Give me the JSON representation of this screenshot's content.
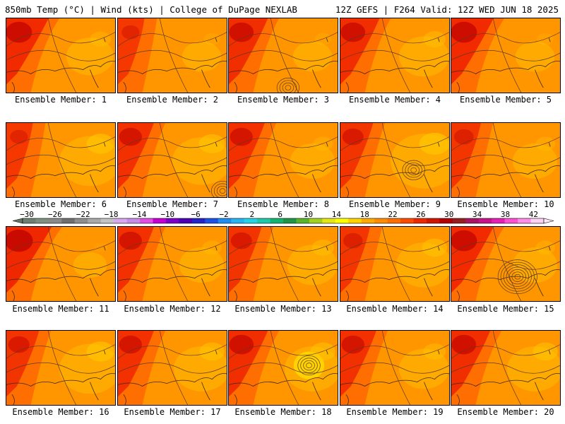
{
  "header": {
    "left": "850mb Temp (°C) | Wind (kts) | College of DuPage NEXLAB",
    "right": "12Z GEFS | F264 Valid: 12Z WED JUN 18 2025"
  },
  "members": [
    {
      "label": "Ensemble Member: 1",
      "cool": 0.35,
      "hot_nw": 0.9,
      "low": null
    },
    {
      "label": "Ensemble Member: 2",
      "cool": 0.2,
      "hot_nw": 0.4,
      "low": null
    },
    {
      "label": "Ensemble Member: 3",
      "cool": 0.2,
      "hot_nw": 0.8,
      "low": "s"
    },
    {
      "label": "Ensemble Member: 4",
      "cool": 0.4,
      "hot_nw": 0.8,
      "low": null
    },
    {
      "label": "Ensemble Member: 5",
      "cool": 0.2,
      "hot_nw": 0.9,
      "low": null
    },
    {
      "label": "Ensemble Member: 6",
      "cool": 0.6,
      "hot_nw": 0.4,
      "low": null
    },
    {
      "label": "Ensemble Member: 7",
      "cool": 0.55,
      "hot_nw": 0.7,
      "low": "se"
    },
    {
      "label": "Ensemble Member: 8",
      "cool": 0.3,
      "hot_nw": 0.7,
      "low": null
    },
    {
      "label": "Ensemble Member: 9",
      "cool": 0.7,
      "hot_nw": 0.6,
      "low": "c"
    },
    {
      "label": "Ensemble Member: 10",
      "cool": 0.3,
      "hot_nw": 0.5,
      "low": null
    },
    {
      "label": "Ensemble Member: 11",
      "cool": 0.1,
      "hot_nw": 1.0,
      "low": null
    },
    {
      "label": "Ensemble Member: 12",
      "cool": 0.3,
      "hot_nw": 0.7,
      "low": null
    },
    {
      "label": "Ensemble Member: 13",
      "cool": 0.4,
      "hot_nw": 0.6,
      "low": null
    },
    {
      "label": "Ensemble Member: 14",
      "cool": 0.5,
      "hot_nw": 0.5,
      "low": null
    },
    {
      "label": "Ensemble Member: 15",
      "cool": 0.3,
      "hot_nw": 0.9,
      "low": "big"
    },
    {
      "label": "Ensemble Member: 16",
      "cool": 0.6,
      "hot_nw": 0.6,
      "low": null
    },
    {
      "label": "Ensemble Member: 17",
      "cool": 0.5,
      "hot_nw": 0.7,
      "low": null
    },
    {
      "label": "Ensemble Member: 18",
      "cool": 0.5,
      "hot_nw": 0.8,
      "low": "e"
    },
    {
      "label": "Ensemble Member: 19",
      "cool": 0.4,
      "hot_nw": 0.7,
      "low": null
    },
    {
      "label": "Ensemble Member: 20",
      "cool": 0.5,
      "hot_nw": 0.8,
      "low": null
    }
  ],
  "colorbar": {
    "labels": [
      "−30",
      "−26",
      "−22",
      "−18",
      "−14",
      "−10",
      "−6",
      "−2",
      "2",
      "6",
      "10",
      "14",
      "18",
      "22",
      "26",
      "30",
      "34",
      "38",
      "42"
    ],
    "colors": [
      "#6e7f74",
      "#7f8f80",
      "#8a8a8a",
      "#6f6f6f",
      "#8e8e8e",
      "#a9a9a9",
      "#c3c3c3",
      "#d8a8ee",
      "#c78ce6",
      "#e24fe6",
      "#c400d2",
      "#7d00c8",
      "#4b00b4",
      "#2323c8",
      "#1e50e6",
      "#1e8cf0",
      "#28b4f0",
      "#28d2e6",
      "#1ec8aa",
      "#14b46e",
      "#1e9646",
      "#5ab428",
      "#a0d21e",
      "#e6e614",
      "#ffff00",
      "#ffd200",
      "#ffaa00",
      "#ff8c00",
      "#ff6e00",
      "#ff4b00",
      "#f02800",
      "#d21400",
      "#b40000",
      "#961e1e",
      "#aa1464",
      "#c8148c",
      "#e61eb4",
      "#ff50d2",
      "#ff8ce6",
      "#ffd2f5"
    ]
  }
}
